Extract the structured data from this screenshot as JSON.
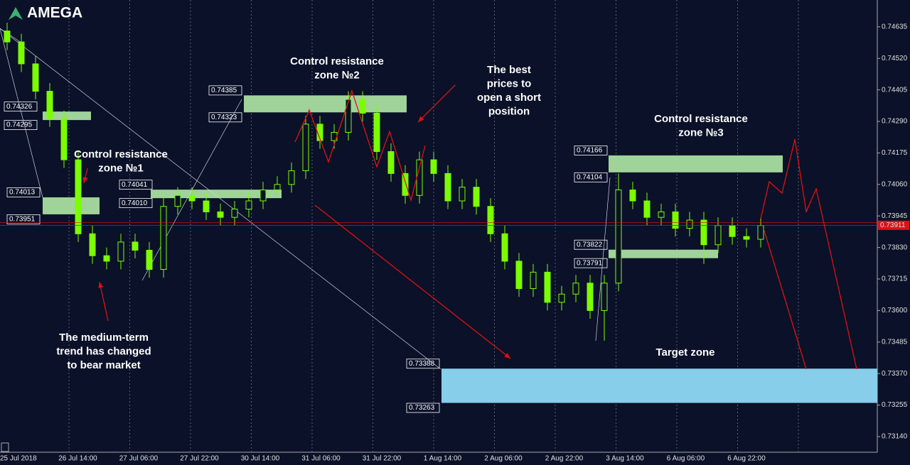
{
  "brand": "AMEGA",
  "chart_data": {
    "type": "candlestick",
    "ylim": [
      0.73083,
      0.74733
    ],
    "yticks": [
      0.74635,
      {
        "value": 0.7452,
        "label": "0.74520"
      },
      0.74405,
      {
        "value": 0.7429,
        "label": "0.74290"
      },
      0.74175,
      {
        "value": 0.7406,
        "label": "0.74060"
      },
      0.73945,
      {
        "value": 0.7383,
        "label": "0.73830"
      },
      0.73715,
      {
        "value": 0.736,
        "label": "0.73600"
      },
      0.73485,
      {
        "value": 0.7337,
        "label": "0.73370"
      },
      0.73255,
      {
        "value": 0.7314,
        "label": "0.73140"
      }
    ],
    "x_labels": [
      "25 Jul 2018",
      "26 Jul 14:00",
      "27 Jul 06:00",
      "27 Jul 22:00",
      "30 Jul 14:00",
      "31 Jul 06:00",
      "31 Jul 22:00",
      "1 Aug 14:00",
      "2 Aug 06:00",
      "2 Aug 22:00",
      "3 Aug 14:00",
      "6 Aug 06:00",
      "6 Aug 22:00"
    ],
    "open": [
      0.7462,
      0.7458,
      0.745,
      0.744,
      0.743,
      0.7415,
      0.7388,
      0.738,
      0.7378,
      0.7385,
      0.7382,
      0.7375,
      0.7398,
      0.7402,
      0.74,
      0.7396,
      0.7394,
      0.7397,
      0.74,
      0.7404,
      0.7406,
      0.7411,
      0.7428,
      0.7422,
      0.7425,
      0.7437,
      0.7432,
      0.7418,
      0.741,
      0.7402,
      0.7415,
      0.741,
      0.74,
      0.7405,
      0.7398,
      0.7388,
      0.7378,
      0.7368,
      0.7374,
      0.7363,
      0.7366,
      0.737,
      0.736,
      0.737,
      0.7404,
      0.74,
      0.7394,
      0.7396,
      0.739,
      0.7393,
      0.7384,
      0.7391,
      0.7387,
      0.7386
    ],
    "high": [
      0.7465,
      0.7461,
      0.7453,
      0.7443,
      0.7433,
      0.7418,
      0.7391,
      0.7383,
      0.7388,
      0.7388,
      0.7385,
      0.7401,
      0.7405,
      0.7405,
      0.7403,
      0.7399,
      0.74,
      0.7403,
      0.7407,
      0.7409,
      0.7414,
      0.7431,
      0.7431,
      0.7428,
      0.744,
      0.744,
      0.7435,
      0.7421,
      0.7413,
      0.7418,
      0.7418,
      0.7413,
      0.7408,
      0.7408,
      0.7401,
      0.7391,
      0.7381,
      0.7377,
      0.7377,
      0.7369,
      0.7373,
      0.7373,
      0.7373,
      0.741,
      0.7407,
      0.7403,
      0.7399,
      0.7399,
      0.7396,
      0.7396,
      0.7394,
      0.7394,
      0.739,
      0.7394
    ],
    "low": [
      0.7455,
      0.7447,
      0.7437,
      0.7427,
      0.7412,
      0.7385,
      0.7377,
      0.7375,
      0.7375,
      0.7379,
      0.7372,
      0.7372,
      0.7395,
      0.7397,
      0.7393,
      0.7391,
      0.7391,
      0.7394,
      0.7397,
      0.7401,
      0.7403,
      0.7408,
      0.7419,
      0.7419,
      0.7422,
      0.7429,
      0.7415,
      0.7407,
      0.7399,
      0.7399,
      0.7407,
      0.7397,
      0.7397,
      0.7395,
      0.7385,
      0.7375,
      0.7365,
      0.7365,
      0.736,
      0.736,
      0.7363,
      0.7357,
      0.7349,
      0.7367,
      0.7397,
      0.7391,
      0.7391,
      0.7387,
      0.7387,
      0.7377,
      0.7381,
      0.7384,
      0.7383,
      0.7383
    ],
    "close": [
      0.7458,
      0.745,
      0.744,
      0.743,
      0.7415,
      0.7388,
      0.738,
      0.7378,
      0.7385,
      0.7382,
      0.7375,
      0.7398,
      0.7402,
      0.74,
      0.7396,
      0.7394,
      0.7397,
      0.74,
      0.7404,
      0.7406,
      0.7411,
      0.7428,
      0.7422,
      0.7425,
      0.7437,
      0.7432,
      0.7418,
      0.741,
      0.7402,
      0.7415,
      0.741,
      0.74,
      0.7405,
      0.7398,
      0.7388,
      0.7378,
      0.7368,
      0.7374,
      0.7363,
      0.7366,
      0.737,
      0.736,
      0.737,
      0.7404,
      0.74,
      0.7394,
      0.7396,
      0.739,
      0.7393,
      0.7384,
      0.7391,
      0.7387,
      0.7386,
      0.7391
    ],
    "up_color": "#7cfc00",
    "down_color": "#7cfc00",
    "zone_color": "#9fd39a",
    "target_color": "#87ceeb",
    "current_price": 0.73911,
    "zones": [
      {
        "top": 0.74326,
        "bottom": 0.74295
      },
      {
        "top": 0.74013,
        "bottom": 0.73951
      },
      {
        "top": 0.74385,
        "bottom": 0.74323
      },
      {
        "top": 0.74041,
        "bottom": {
          "value": 0.7401,
          "label": "0.74010"
        }
      },
      {
        "top": 0.74166,
        "bottom": 0.74104
      },
      {
        "top": 0.73822,
        "bottom": 0.73791
      }
    ],
    "target": {
      "top": 0.73388,
      "bottom": 0.73263
    },
    "annotations": [
      {
        "lines": [
          "Control resistance",
          "zone №1"
        ]
      },
      {
        "lines": [
          "The medium-term",
          "trend has changed",
          "to bear market"
        ]
      },
      {
        "lines": [
          "Control resistance",
          "zone №2"
        ]
      },
      {
        "lines": [
          "The best",
          "prices to",
          "open a short",
          "position"
        ]
      },
      {
        "lines": [
          "Control resistance",
          "zone №3"
        ]
      },
      {
        "lines": [
          "Target zone"
        ]
      }
    ]
  }
}
